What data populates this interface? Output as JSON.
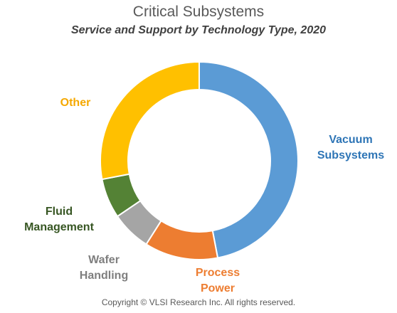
{
  "chart_data": {
    "type": "pie",
    "donut": true,
    "title": "Critical Subsystems",
    "subtitle": "Service and Support by Technology Type, 2020",
    "categories": [
      "Vacuum Subsystems",
      "Process Power",
      "Wafer Handling",
      "Fluid Management",
      "Other"
    ],
    "values": [
      47,
      12,
      6.5,
      6.5,
      28
    ],
    "value_unit": "percent (estimated from slice angles)",
    "colors": [
      "#5b9bd5",
      "#ed7d31",
      "#a5a5a5",
      "#548235",
      "#ffc000"
    ],
    "label_colors": [
      "#2e75b6",
      "#ed7d31",
      "#7f7f7f",
      "#375623",
      "#f5a800"
    ],
    "labels": [
      {
        "text": "Vacuum\nSubsystems"
      },
      {
        "text": "Process\nPower"
      },
      {
        "text": "Wafer\nHandling"
      },
      {
        "text": "Fluid\nManagement"
      },
      {
        "text": "Other"
      }
    ],
    "legend": "none"
  },
  "footer": "Copyright © VLSI Research Inc.  All rights reserved."
}
